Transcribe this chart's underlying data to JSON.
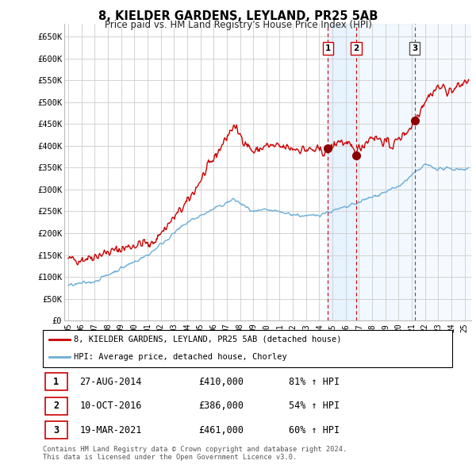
{
  "title": "8, KIELDER GARDENS, LEYLAND, PR25 5AB",
  "subtitle": "Price paid vs. HM Land Registry's House Price Index (HPI)",
  "ylabel_ticks": [
    "£0",
    "£50K",
    "£100K",
    "£150K",
    "£200K",
    "£250K",
    "£300K",
    "£350K",
    "£400K",
    "£450K",
    "£500K",
    "£550K",
    "£600K",
    "£650K"
  ],
  "ytick_values": [
    0,
    50000,
    100000,
    150000,
    200000,
    250000,
    300000,
    350000,
    400000,
    450000,
    500000,
    550000,
    600000,
    650000
  ],
  "ylim": [
    0,
    680000
  ],
  "xlim_start": 1994.7,
  "xlim_end": 2025.5,
  "sale_events": [
    {
      "label": "1",
      "date_str": "27-AUG-2014",
      "year": 2014.65,
      "price": 410000,
      "vline_style": "dashed_red"
    },
    {
      "label": "2",
      "date_str": "10-OCT-2016",
      "year": 2016.78,
      "price": 386000,
      "vline_style": "dashed_red"
    },
    {
      "label": "3",
      "date_str": "19-MAR-2021",
      "year": 2021.21,
      "price": 461000,
      "vline_style": "dashed_black"
    }
  ],
  "legend_entries": [
    {
      "label": "8, KIELDER GARDENS, LEYLAND, PR25 5AB (detached house)",
      "color": "#cc0000"
    },
    {
      "label": "HPI: Average price, detached house, Chorley",
      "color": "#6baed6"
    }
  ],
  "table_rows": [
    {
      "num": "1",
      "date": "27-AUG-2014",
      "price": "£410,000",
      "hpi": "81% ↑ HPI"
    },
    {
      "num": "2",
      "date": "10-OCT-2016",
      "price": "£386,000",
      "hpi": "54% ↑ HPI"
    },
    {
      "num": "3",
      "date": "19-MAR-2021",
      "price": "£461,000",
      "hpi": "60% ↑ HPI"
    }
  ],
  "footer": "Contains HM Land Registry data © Crown copyright and database right 2024.\nThis data is licensed under the Open Government Licence v3.0.",
  "background_color": "#ffffff",
  "grid_color": "#cccccc",
  "red_line_color": "#cc0000",
  "blue_line_color": "#6baed6",
  "shaded_region_color": "#ddeeff",
  "xtick_labels": [
    "95",
    "96",
    "97",
    "98",
    "99",
    "00",
    "01",
    "02",
    "03",
    "04",
    "05",
    "06",
    "07",
    "08",
    "09",
    "10",
    "11",
    "12",
    "13",
    "14",
    "15",
    "16",
    "17",
    "18",
    "19",
    "20",
    "21",
    "22",
    "23",
    "24",
    "25"
  ],
  "xtick_years": [
    1995,
    1996,
    1997,
    1998,
    1999,
    2000,
    2001,
    2002,
    2003,
    2004,
    2005,
    2006,
    2007,
    2008,
    2009,
    2010,
    2011,
    2012,
    2013,
    2014,
    2015,
    2016,
    2017,
    2018,
    2019,
    2020,
    2021,
    2022,
    2023,
    2024,
    2025
  ]
}
